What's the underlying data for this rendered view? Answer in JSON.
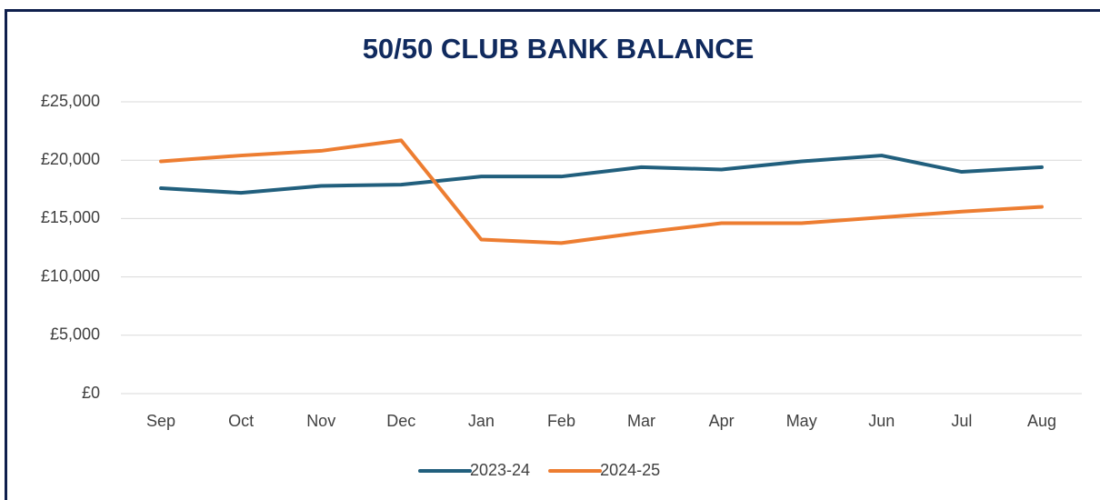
{
  "chart_data": {
    "type": "line",
    "title": "50/50 CLUB BANK BALANCE",
    "categories": [
      "Sep",
      "Oct",
      "Nov",
      "Dec",
      "Jan",
      "Feb",
      "Mar",
      "Apr",
      "May",
      "Jun",
      "Jul",
      "Aug"
    ],
    "series": [
      {
        "name": "2023-24",
        "color": "#215f7d",
        "values": [
          17600,
          17200,
          17800,
          17900,
          18600,
          18600,
          19400,
          19200,
          19900,
          20400,
          19000,
          19400
        ]
      },
      {
        "name": "2024-25",
        "color": "#ed7d31",
        "values": [
          19900,
          20400,
          20800,
          21700,
          13200,
          12900,
          13800,
          14600,
          14600,
          15100,
          15600,
          16000
        ]
      }
    ],
    "ylim": [
      0,
      25000
    ],
    "yticks": [
      {
        "value": 0,
        "label": "£0"
      },
      {
        "value": 5000,
        "label": "£5,000"
      },
      {
        "value": 10000,
        "label": "£10,000"
      },
      {
        "value": 15000,
        "label": "£15,000"
      },
      {
        "value": 20000,
        "label": "£20,000"
      },
      {
        "value": 25000,
        "label": "£25,000"
      }
    ],
    "grid": true,
    "legend": "bottom"
  }
}
